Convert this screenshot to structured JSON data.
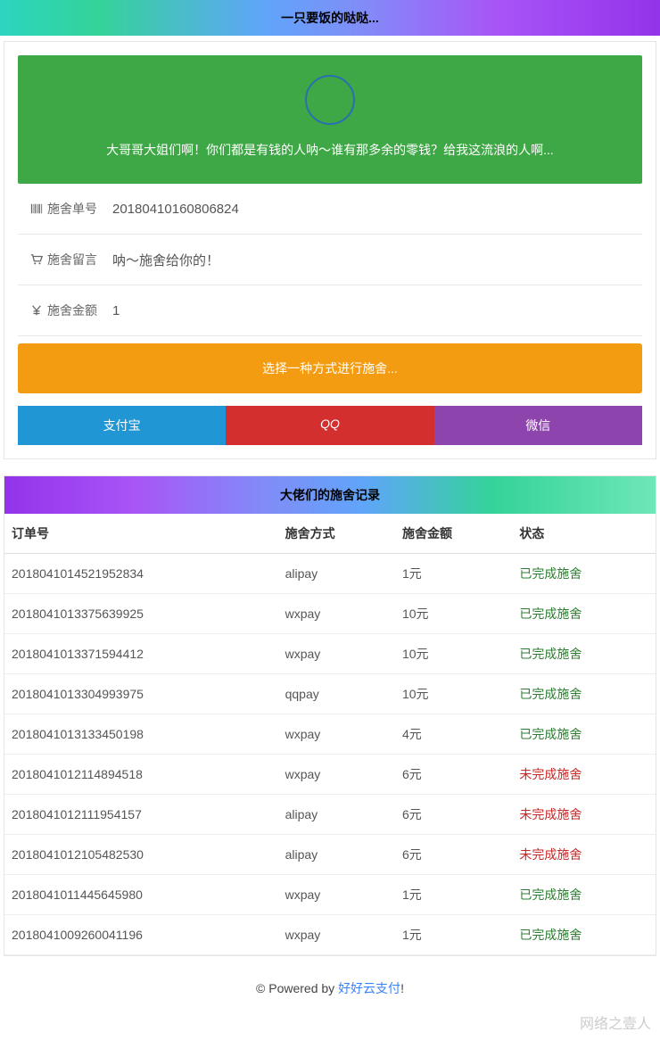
{
  "header": {
    "title": "一只要饭的哒哒..."
  },
  "banner": {
    "text": "大哥哥大姐们啊！你们都是有钱的人呐～谁有那多余的零钱？给我这流浪的人啊...",
    "bg_color": "#3fa846",
    "circle_border": "#2a6fb0"
  },
  "form": {
    "order_label": "施舍单号",
    "order_value": "20180410160806824",
    "message_label": "施舍留言",
    "message_value": "呐～施舍给你的！",
    "amount_label": "施舍金额",
    "amount_value": "1"
  },
  "select_banner": {
    "text": "选择一种方式进行施舍...",
    "bg_color": "#f39c12"
  },
  "pay_buttons": {
    "alipay": {
      "label": "支付宝",
      "color": "#2196d4"
    },
    "qq": {
      "label": "QQ",
      "color": "#d32f2f"
    },
    "wechat": {
      "label": "微信",
      "color": "#8e44ad"
    }
  },
  "records": {
    "title": "大佬们的施舍记录",
    "columns": [
      "订单号",
      "施舍方式",
      "施舍金额",
      "状态"
    ],
    "status_text": {
      "done": "已完成施舍",
      "pending": "未完成施舍"
    },
    "rows": [
      {
        "order": "2018041014521952834",
        "method": "alipay",
        "amount": "1元",
        "status": "done"
      },
      {
        "order": "2018041013375639925",
        "method": "wxpay",
        "amount": "10元",
        "status": "done"
      },
      {
        "order": "2018041013371594412",
        "method": "wxpay",
        "amount": "10元",
        "status": "done"
      },
      {
        "order": "2018041013304993975",
        "method": "qqpay",
        "amount": "10元",
        "status": "done"
      },
      {
        "order": "2018041013133450198",
        "method": "wxpay",
        "amount": "4元",
        "status": "done"
      },
      {
        "order": "2018041012114894518",
        "method": "wxpay",
        "amount": "6元",
        "status": "pending"
      },
      {
        "order": "2018041012111954157",
        "method": "alipay",
        "amount": "6元",
        "status": "pending"
      },
      {
        "order": "2018041012105482530",
        "method": "alipay",
        "amount": "6元",
        "status": "pending"
      },
      {
        "order": "2018041011445645980",
        "method": "wxpay",
        "amount": "1元",
        "status": "done"
      },
      {
        "order": "2018041009260041196",
        "method": "wxpay",
        "amount": "1元",
        "status": "done"
      }
    ]
  },
  "footer": {
    "prefix": "© Powered by ",
    "link_text": "好好云支付",
    "suffix": "!"
  },
  "watermark": "网络之壹人"
}
